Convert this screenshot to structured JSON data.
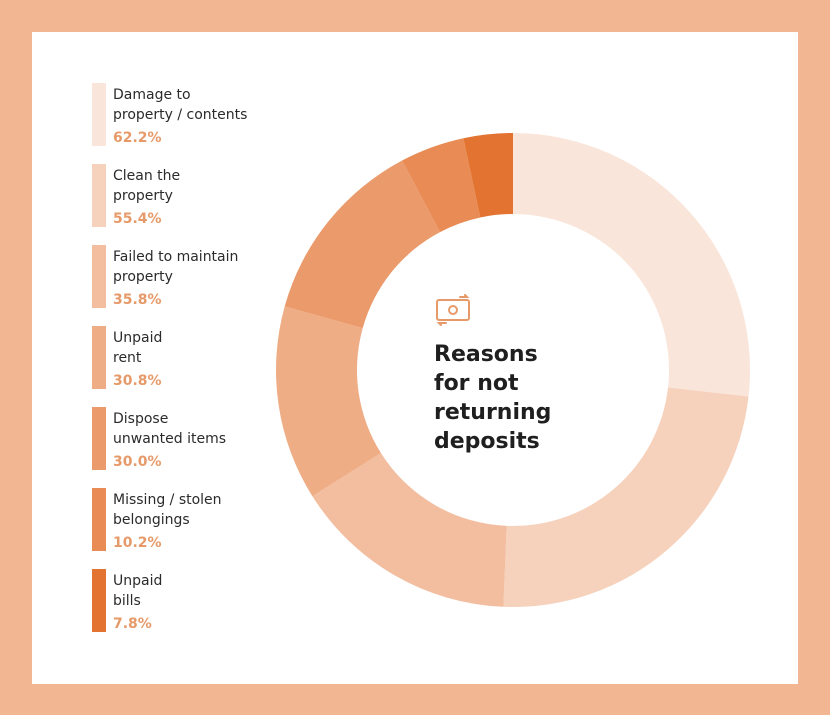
{
  "center_title": "Reasons\nfor not\nreturning\ndeposits",
  "icon": "money-bill-exchange-icon",
  "colors": {
    "background": "#f2b693",
    "card": "#ffffff",
    "accent_text": "#e79a69",
    "icon": "#e79a69"
  },
  "chart_data": {
    "type": "pie",
    "style": "donut",
    "title": "Reasons\nfor not\nreturning\ndeposits",
    "categories": [
      "Damage to\nproperty / contents",
      "Clean the\nproperty",
      "Failed to maintain\nproperty",
      "Unpaid\nrent",
      "Dispose\nunwanted items",
      "Missing / stolen\nbelongings",
      "Unpaid\nbills"
    ],
    "values": [
      62.2,
      55.4,
      35.8,
      30.8,
      30.0,
      10.2,
      7.8
    ],
    "value_labels": [
      "62.2%",
      "55.4%",
      "35.8%",
      "30.8%",
      "30.0%",
      "10.2%",
      "7.8%"
    ],
    "colors": [
      "#fae5da",
      "#f6d1bb",
      "#f2be9f",
      "#efad86",
      "#eb9a6b",
      "#e88b54",
      "#e27330"
    ],
    "legend_position": "left"
  }
}
